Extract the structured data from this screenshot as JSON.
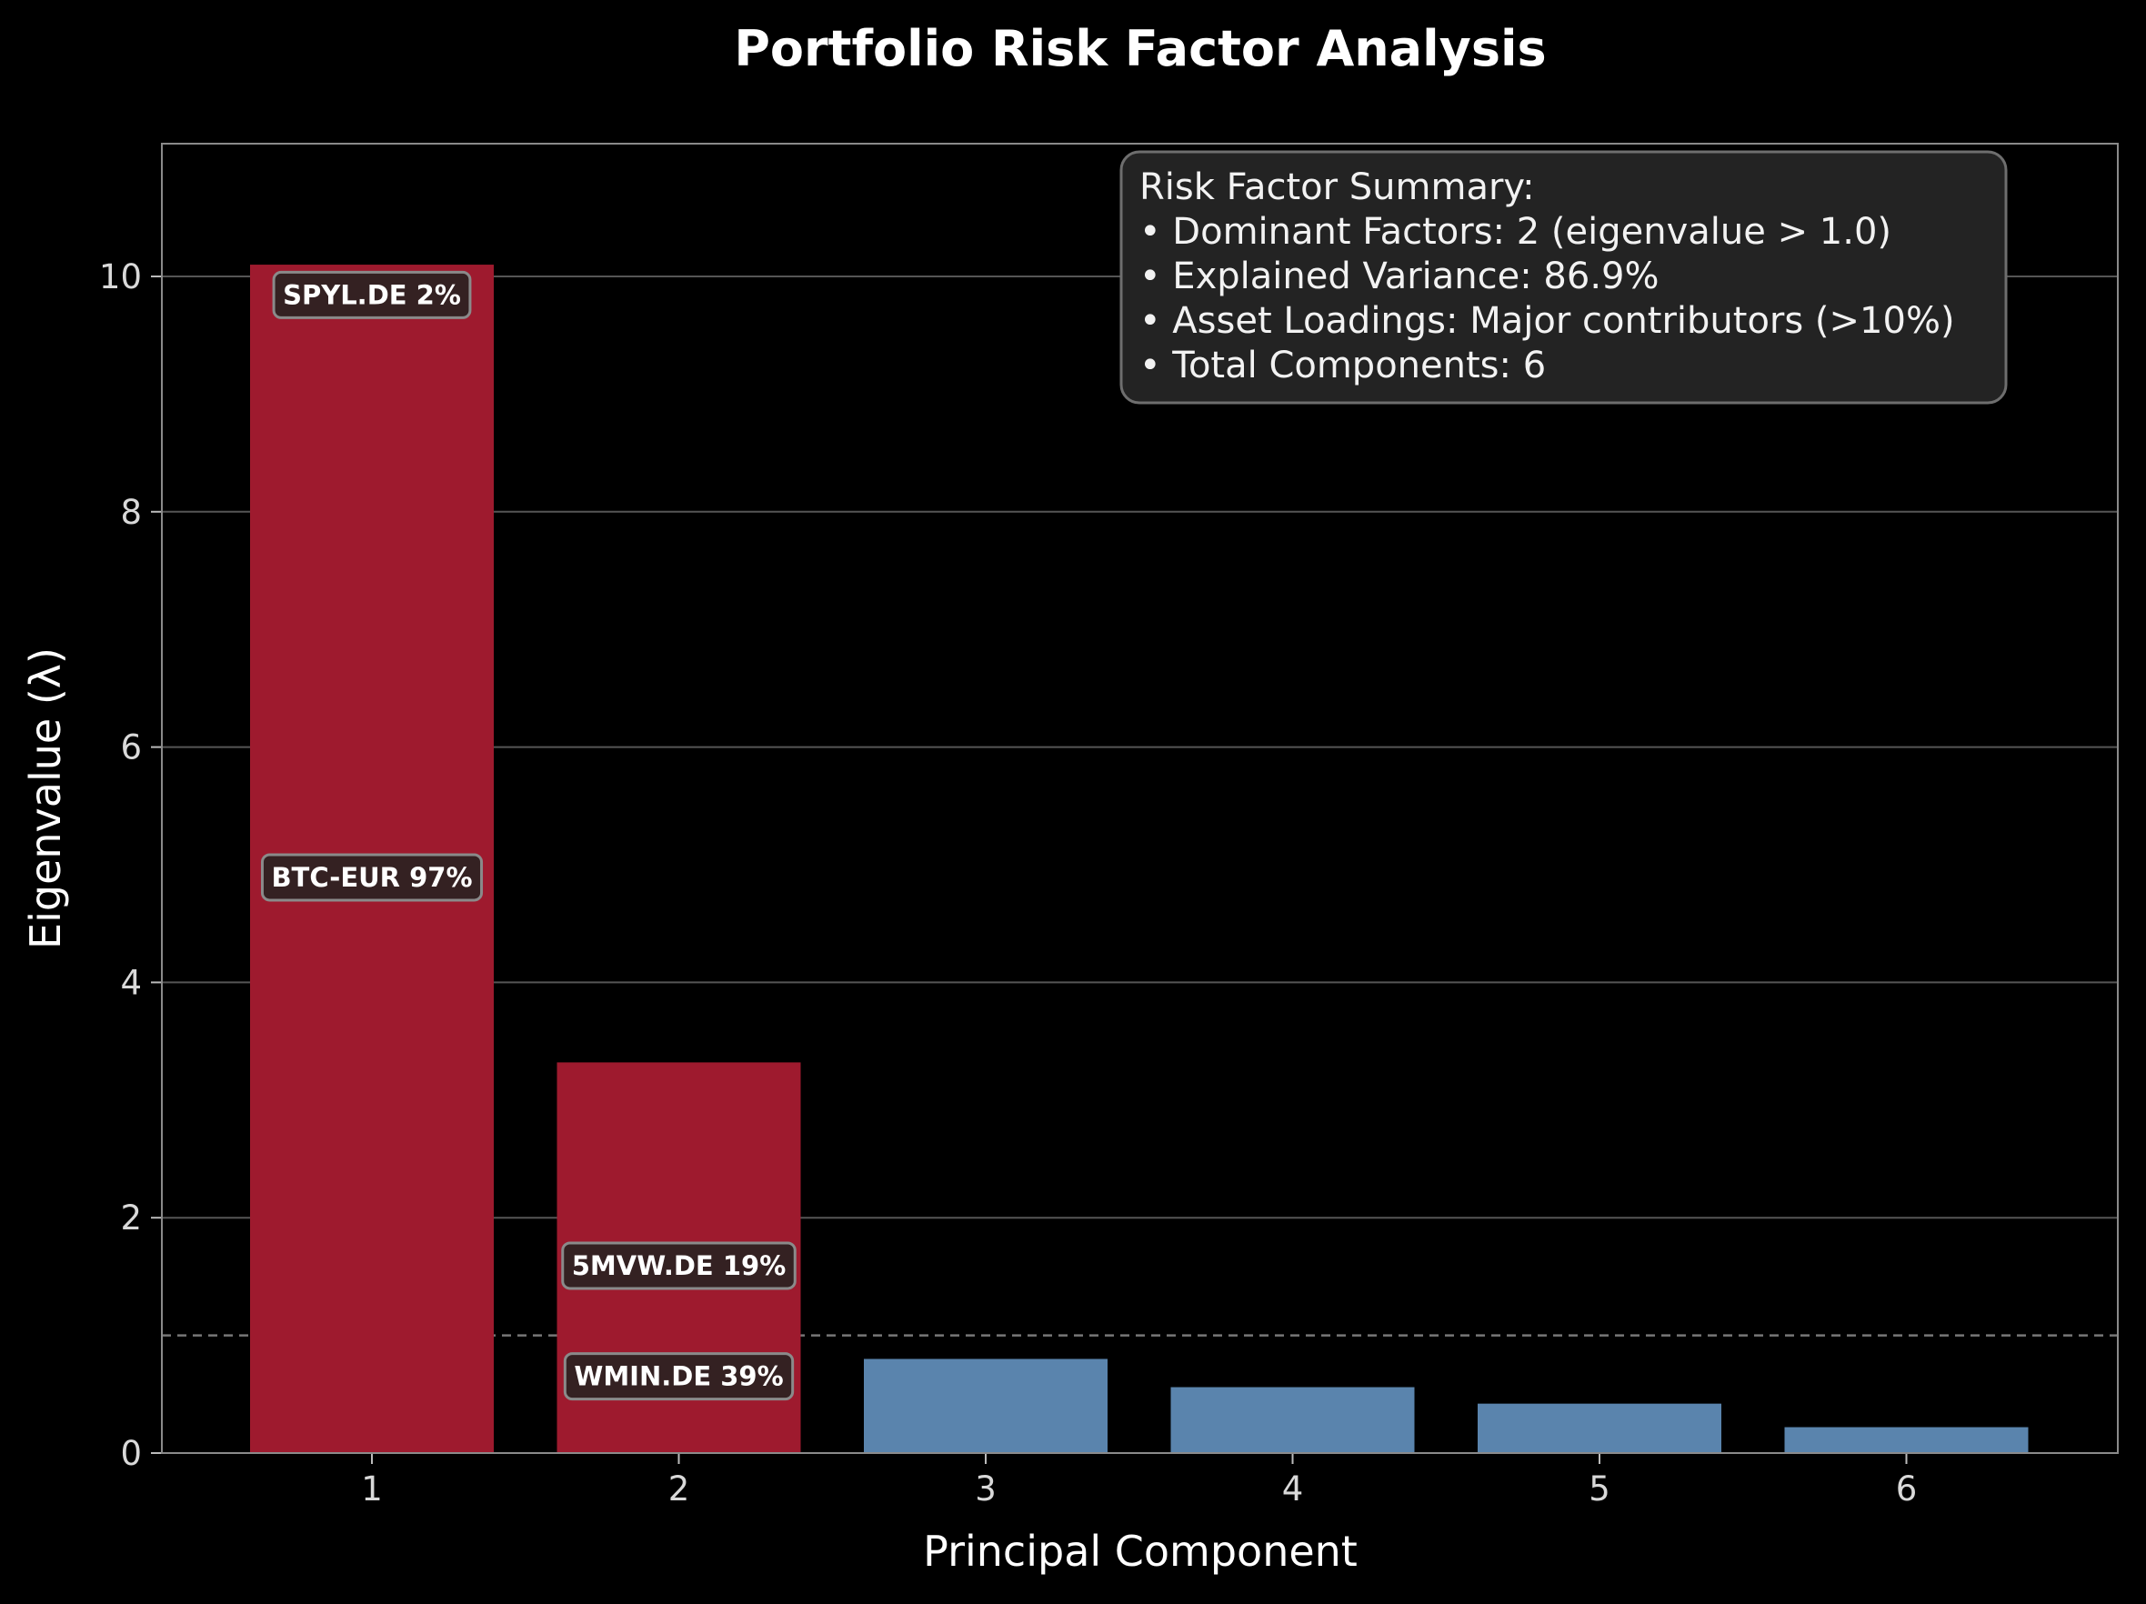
{
  "chart_data": {
    "type": "bar",
    "title": "Portfolio Risk Factor Analysis",
    "xlabel": "Principal Component",
    "ylabel": "Eigenvalue (λ)",
    "categories": [
      "1",
      "2",
      "3",
      "4",
      "5",
      "6"
    ],
    "values": [
      10.1,
      3.32,
      0.8,
      0.56,
      0.42,
      0.22
    ],
    "ylim": [
      0,
      11.1
    ],
    "yticks": [
      "0",
      "2",
      "4",
      "6",
      "8",
      "10"
    ],
    "grid": "horizontal",
    "threshold_line": {
      "value": 1.0,
      "style": "dashed"
    },
    "colors": {
      "dominant": "#9e1a2e",
      "minor": "#5a84ad"
    },
    "bar_colors": [
      "dominant",
      "dominant",
      "minor",
      "minor",
      "minor",
      "minor"
    ],
    "annotations": [
      {
        "text": "SPYL.DE 2%",
        "x": "1",
        "y": 9.85
      },
      {
        "text": "BTC-EUR 97%",
        "x": "1",
        "y": 4.9
      },
      {
        "text": "5MVW.DE 19%",
        "x": "2",
        "y": 1.6
      },
      {
        "text": "WMIN.DE 39%",
        "x": "2",
        "y": 0.66
      }
    ],
    "summary": {
      "lines": [
        "Risk Factor Summary:",
        "• Dominant Factors: 2 (eigenvalue > 1.0)",
        "• Explained Variance: 86.9%",
        "• Asset Loadings: Major contributors (>10%)",
        "• Total Components: 6"
      ],
      "placement": "top-right"
    }
  }
}
